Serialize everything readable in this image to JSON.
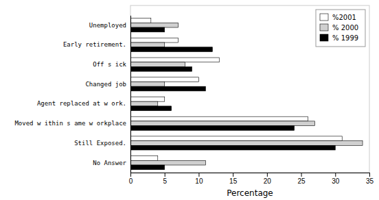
{
  "chart_data": {
    "type": "bar",
    "orientation": "horizontal",
    "categories": [
      "No Answer",
      "Still Exposed.",
      "Moved w ithin s ame w orkplace",
      "Agent replaced at w ork.",
      "Changed job",
      "Off s ick",
      "Early retirement.",
      "Unemployed"
    ],
    "series": [
      {
        "name": "%2001",
        "color": "#ffffff",
        "values": [
          4,
          31,
          26,
          5,
          10,
          13,
          7,
          3
        ]
      },
      {
        "name": "% 2000",
        "color": "#d0d0d0",
        "values": [
          11,
          34,
          27,
          4,
          5,
          8,
          5,
          7
        ]
      },
      {
        "name": "% 1999",
        "color": "#000000",
        "values": [
          5,
          30,
          24,
          6,
          11,
          9,
          12,
          5
        ]
      }
    ],
    "x_label": "Percentage",
    "xlim": [
      0,
      35
    ],
    "xticks": [
      0,
      5,
      10,
      15,
      20,
      25,
      30,
      35
    ],
    "legend": "upper right"
  }
}
